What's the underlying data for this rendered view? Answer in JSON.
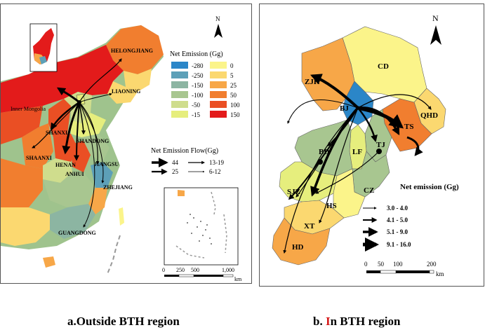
{
  "panel_a": {
    "north_label": "N",
    "provinces": {
      "heilongjiang": "HELONGJIANG",
      "liaoning": "LIAONING",
      "inner_mongolia": "Inner Mongolia",
      "shanxi": "SHANXI",
      "shandong": "SHANDONG",
      "shaanxi": "SHAANXI",
      "henan": "HENAN",
      "jiangsu": "JIANGSU",
      "anhui": "ANHUI",
      "zhejiang": "ZHEJIANG",
      "guangdong": "GUANGDONG"
    },
    "legend": {
      "title": "Net Emission (Gg)",
      "items": [
        {
          "label": "-280",
          "color": "#2b86c8"
        },
        {
          "label": "-250",
          "color": "#5da0b8"
        },
        {
          "label": "-150",
          "color": "#8cb5a2"
        },
        {
          "label": "-100",
          "color": "#a8c690"
        },
        {
          "label": "-50",
          "color": "#cfdd8d"
        },
        {
          "label": "-15",
          "color": "#e6ee7d"
        },
        {
          "label": "0",
          "color": "#fbf48a"
        },
        {
          "label": "5",
          "color": "#fbd870"
        },
        {
          "label": "25",
          "color": "#f7a748"
        },
        {
          "label": "50",
          "color": "#f17e2f"
        },
        {
          "label": "100",
          "color": "#ea4f24"
        },
        {
          "label": "150",
          "color": "#e31b1b"
        }
      ]
    },
    "flow_legend": {
      "title": "Net Emission Flow(Gg)",
      "items": [
        "44",
        "25",
        "13-19",
        "6-12"
      ]
    },
    "scale": {
      "ticks": [
        "0",
        "250",
        "500",
        "1,000"
      ],
      "unit": "km"
    }
  },
  "panel_b": {
    "north_label": "N",
    "regions": {
      "cd": "CD",
      "zjk": "ZJK",
      "bj": "BJ",
      "qhd": "QHD",
      "ts": "TS",
      "tj": "TJ",
      "bd": "BD",
      "lf": "LF",
      "sjz": "SJZ",
      "cz": "CZ",
      "hs": "HS",
      "xt": "XT",
      "hd": "HD"
    },
    "legend": {
      "title": "Net emission (Gg)",
      "items": [
        "3.0 - 4.0",
        "4.1 - 5.0",
        "5.1 - 9.0",
        "9.1 - 16.0"
      ]
    },
    "scale": {
      "ticks": [
        "0",
        "50",
        "100",
        "200"
      ],
      "unit": "km"
    }
  },
  "captions": {
    "a": "a.Outside BTH region",
    "b_letter": "b. ",
    "b_red": "I",
    "b_rest": "n BTH region"
  }
}
